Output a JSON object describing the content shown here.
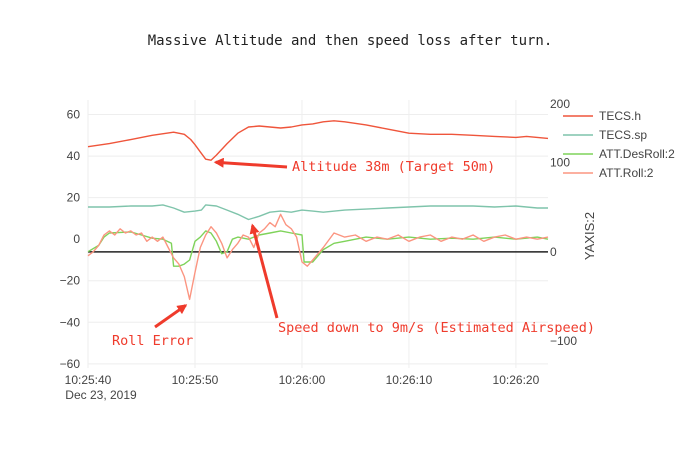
{
  "chart_data": {
    "type": "line",
    "title": "Massive Altitude and then speed loss after turn.",
    "x_axis": {
      "range": [
        "10:25:40",
        "10:26:23"
      ],
      "tick_labels": [
        "10:25:40",
        "10:25:50",
        "10:26:00",
        "10:26:10",
        "10:26:20"
      ],
      "tick_values_s": [
        0,
        10,
        20,
        30,
        40
      ],
      "date_label": "Dec 23, 2019"
    },
    "y_axis": {
      "range": [
        -62,
        67
      ],
      "tick_values": [
        60,
        40,
        20,
        0,
        -20,
        -40,
        -60
      ],
      "tick_labels": [
        "60",
        "40",
        "20",
        "0",
        "−20",
        "−40",
        "−60"
      ],
      "grid": true
    },
    "y_axis2": {
      "label": "YAXIS:2",
      "range": [
        -130,
        170
      ],
      "tick_values": [
        200,
        100,
        0,
        -100
      ],
      "tick_labels": [
        "200",
        "100",
        "0",
        "−100"
      ]
    },
    "legend": {
      "placement": "top-right",
      "entries": [
        "TECS.h",
        "TECS.sp",
        "ATT.DesRoll:2",
        "ATT.Roll:2"
      ]
    },
    "series": [
      {
        "name": "TECS.h",
        "color": "#ef553b",
        "axis": "y",
        "x": [
          0,
          2,
          4,
          6,
          8,
          9,
          9.6,
          10,
          10.5,
          11,
          11.5,
          12,
          13,
          14,
          15,
          16,
          17,
          18,
          19,
          20,
          21,
          22,
          23,
          24,
          26,
          28,
          30,
          32,
          34,
          36,
          38,
          40,
          41,
          42,
          43
        ],
        "y": [
          44.5,
          46,
          48,
          50,
          51.5,
          50.5,
          48,
          45.5,
          42,
          38.5,
          38,
          40.5,
          46,
          51,
          54,
          54.5,
          54,
          53.5,
          54,
          55,
          55.5,
          56.5,
          57,
          56.5,
          55,
          53,
          51,
          50.5,
          50.5,
          50,
          49.5,
          49,
          49.5,
          49,
          48.5
        ]
      },
      {
        "name": "TECS.sp",
        "color": "#7fc4ab",
        "axis": "y",
        "x": [
          0,
          2,
          4,
          6,
          7,
          8,
          9,
          10,
          10.6,
          11,
          12,
          13,
          14,
          15,
          16,
          17,
          18,
          19,
          20,
          21,
          22,
          24,
          26,
          28,
          30,
          32,
          34,
          36,
          38,
          40,
          42,
          43
        ],
        "y": [
          15.5,
          15.5,
          16,
          16,
          16.5,
          15,
          13,
          13.5,
          14,
          16.5,
          16,
          14,
          12,
          9.5,
          11,
          13,
          13.5,
          13,
          14,
          13.5,
          13,
          14,
          14.5,
          15,
          15.5,
          16,
          16,
          16,
          15.5,
          16,
          15,
          15
        ]
      },
      {
        "name": "ATT.DesRoll:2",
        "color": "#7fd35a",
        "axis": "y",
        "x": [
          0,
          1,
          1.5,
          2,
          4,
          5,
          6,
          7,
          7.8,
          8,
          8.5,
          9,
          9.5,
          10,
          10.5,
          11,
          11.5,
          12,
          12.5,
          13,
          13.5,
          14,
          15,
          16,
          17,
          18,
          19,
          20,
          20.2,
          21,
          22,
          23,
          24,
          25,
          26,
          28,
          30,
          32,
          34,
          36,
          38,
          40,
          42,
          43
        ],
        "y": [
          -6,
          -3,
          1,
          3,
          3.5,
          2,
          0.5,
          0,
          -2,
          -13,
          -13,
          -12,
          -10,
          -1,
          1,
          4,
          3,
          -1,
          -7,
          -6,
          0,
          1,
          0,
          2,
          3,
          4,
          3,
          2,
          -11,
          -11,
          -5,
          -2,
          -1,
          0,
          1,
          0,
          1,
          0,
          0.5,
          0,
          1,
          0,
          1,
          0
        ]
      },
      {
        "name": "ATT.Roll:2",
        "color": "#fb9581",
        "axis": "y",
        "x": [
          0,
          0.5,
          1,
          1.5,
          2,
          2.5,
          3,
          3.5,
          4,
          4.5,
          5,
          5.5,
          6,
          6.5,
          7,
          7.5,
          8,
          8.5,
          9,
          9.5,
          10,
          10.5,
          11,
          11.5,
          12,
          12.5,
          13,
          13.5,
          14,
          14.5,
          15,
          15.5,
          16,
          16.5,
          17,
          17.5,
          18,
          18.5,
          19,
          19.5,
          20,
          20.5,
          21,
          21.5,
          22,
          23,
          24,
          25,
          26,
          27,
          28,
          29,
          30,
          31,
          32,
          33,
          34,
          35,
          36,
          37,
          38,
          39,
          40,
          41,
          42,
          43
        ],
        "y": [
          -8,
          -6,
          -3,
          2,
          4,
          2,
          5,
          3,
          4,
          2,
          3,
          -1,
          1,
          -1,
          1,
          -4,
          -9,
          -12,
          -18,
          -29,
          -16,
          -4,
          2,
          6,
          3,
          -2,
          -9,
          -5,
          -2,
          2,
          1,
          -4,
          3,
          5,
          8,
          6,
          12,
          7,
          5,
          1,
          -11,
          -13,
          -10,
          -7,
          -4,
          3,
          1,
          2,
          -1,
          1,
          0,
          2,
          -1,
          1,
          2,
          -1,
          1,
          0,
          2,
          -1,
          1,
          2,
          0,
          1,
          0,
          1
        ]
      },
      {
        "name": "",
        "color": "#222222",
        "axis": "y2",
        "x": [
          0,
          43
        ],
        "y": [
          0,
          0
        ]
      }
    ],
    "annotations": [
      {
        "text": "Altitude 38m (Target 50m)",
        "x": 11,
        "y": 38,
        "color": "#ef3b2c"
      },
      {
        "text": "Speed down to 9m/s (Estimated Airspeed)",
        "x": 15,
        "y": 9.5,
        "color": "#ef3b2c"
      },
      {
        "text": "Roll Error",
        "x": 9.5,
        "y": -29,
        "color": "#ef3b2c"
      }
    ]
  }
}
